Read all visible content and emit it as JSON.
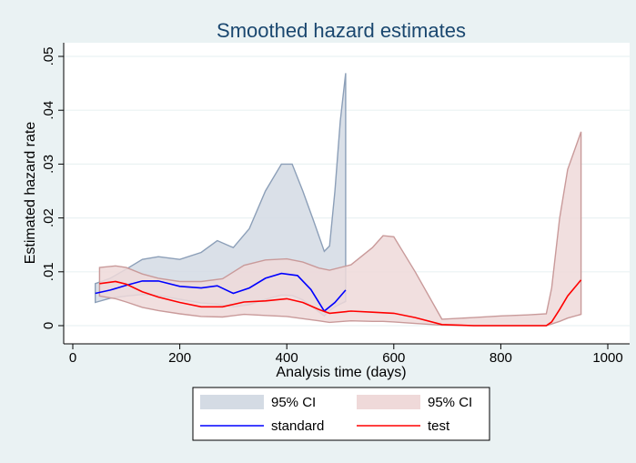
{
  "chart_data": {
    "type": "area",
    "title": "Smoothed hazard estimates",
    "xlabel": "Analysis time (days)",
    "ylabel": "Estimated hazard rate",
    "xlim": [
      0,
      1000
    ],
    "ylim": [
      0,
      0.05
    ],
    "x_ticks": [
      0,
      200,
      400,
      600,
      800,
      1000
    ],
    "x_tick_labels": [
      "0",
      "200",
      "400",
      "600",
      "800",
      "1000"
    ],
    "y_ticks": [
      0,
      0.01,
      0.02,
      0.03,
      0.04,
      0.05
    ],
    "y_tick_labels": [
      "0",
      ".01",
      ".02",
      ".03",
      ".04",
      ".05"
    ],
    "grid": "horizontal",
    "legend_placement": "bottom",
    "series": [
      {
        "name": "standard",
        "kind": "line",
        "color": "#0000ff",
        "x": [
          42,
          70,
          100,
          130,
          160,
          200,
          240,
          270,
          300,
          330,
          360,
          390,
          420,
          445,
          470,
          490,
          510
        ],
        "y": [
          0.006,
          0.0066,
          0.0075,
          0.0083,
          0.0083,
          0.0073,
          0.007,
          0.0074,
          0.006,
          0.007,
          0.0088,
          0.0097,
          0.0093,
          0.0067,
          0.0027,
          0.0043,
          0.0066
        ]
      },
      {
        "name": "95% CI",
        "kind": "band",
        "color": "#d4dbe4",
        "edge": "#8c9fb8",
        "x": [
          42,
          70,
          100,
          130,
          160,
          200,
          240,
          270,
          300,
          330,
          360,
          390,
          410,
          430,
          450,
          470,
          480,
          490,
          500,
          510
        ],
        "lower": [
          0.0043,
          0.0051,
          0.0055,
          0.0058,
          0.0056,
          0.0049,
          0.0042,
          0.004,
          0.0035,
          0.0039,
          0.0049,
          0.0057,
          0.0056,
          0.0048,
          0.0033,
          0.0018,
          0.0028,
          0.0035,
          0.004,
          0.0045
        ],
        "upper": [
          0.0078,
          0.0088,
          0.0105,
          0.0123,
          0.0128,
          0.0123,
          0.0136,
          0.0158,
          0.0145,
          0.018,
          0.025,
          0.03,
          0.03,
          0.025,
          0.0195,
          0.0138,
          0.0148,
          0.025,
          0.038,
          0.0469
        ]
      },
      {
        "name": "test",
        "kind": "line",
        "color": "#ff0000",
        "x": [
          50,
          80,
          100,
          130,
          160,
          200,
          240,
          280,
          320,
          360,
          400,
          430,
          460,
          480,
          520,
          560,
          600,
          640,
          690,
          750,
          800,
          850,
          885,
          895,
          910,
          925,
          950
        ],
        "y": [
          0.0078,
          0.0082,
          0.0077,
          0.0063,
          0.0053,
          0.0043,
          0.0035,
          0.0035,
          0.0044,
          0.0046,
          0.005,
          0.0043,
          0.003,
          0.0023,
          0.0027,
          0.0025,
          0.0023,
          0.0015,
          0.0002,
          0.0,
          0.0,
          0.0,
          0.0,
          0.0007,
          0.003,
          0.0055,
          0.0085
        ]
      },
      {
        "name": "95% CI",
        "kind": "band",
        "color": "#efd9d9",
        "edge": "#c99a9a",
        "x": [
          50,
          80,
          100,
          130,
          160,
          200,
          240,
          280,
          320,
          360,
          400,
          430,
          460,
          480,
          520,
          560,
          580,
          600,
          640,
          690,
          750,
          800,
          850,
          885,
          895,
          910,
          925,
          950
        ],
        "lower": [
          0.0055,
          0.005,
          0.0044,
          0.0034,
          0.0028,
          0.0022,
          0.0017,
          0.0016,
          0.0021,
          0.0019,
          0.0017,
          0.0013,
          0.0009,
          0.0006,
          0.0009,
          0.0008,
          0.0008,
          0.0007,
          0.0004,
          0.0001,
          0.0,
          0.0,
          0.0,
          0.0,
          0.0003,
          0.0008,
          0.0014,
          0.0021
        ],
        "upper": [
          0.0108,
          0.0111,
          0.0108,
          0.0096,
          0.0088,
          0.0082,
          0.0082,
          0.0087,
          0.0112,
          0.0122,
          0.0124,
          0.0118,
          0.0107,
          0.0103,
          0.0113,
          0.0145,
          0.0167,
          0.0165,
          0.01,
          0.0012,
          0.0015,
          0.0018,
          0.002,
          0.0022,
          0.007,
          0.02,
          0.029,
          0.036
        ]
      }
    ],
    "legend": [
      {
        "label": "95% CI",
        "kind": "band",
        "color": "#d4dbe4",
        "edge": "#8c9fb8"
      },
      {
        "label": "95% CI",
        "kind": "band",
        "color": "#efd9d9",
        "edge": "#c99a9a"
      },
      {
        "label": "standard",
        "kind": "line",
        "color": "#0000ff"
      },
      {
        "label": "test",
        "kind": "line",
        "color": "#ff0000"
      }
    ]
  }
}
